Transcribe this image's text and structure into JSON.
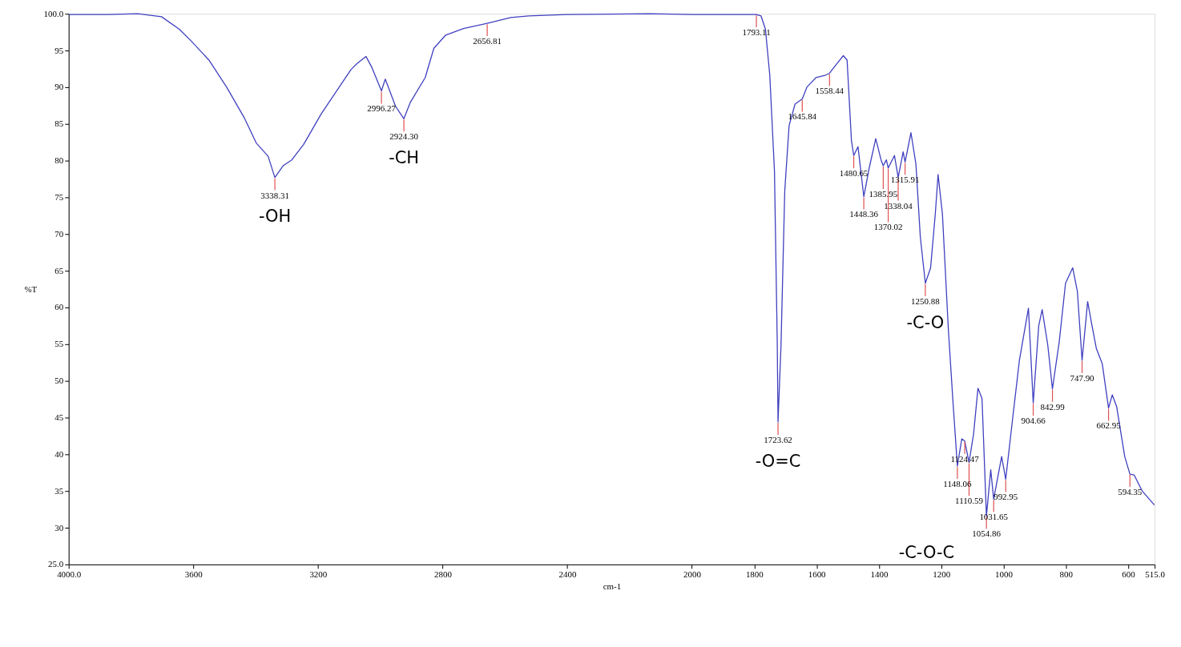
{
  "chart_data": {
    "type": "line",
    "xlabel": "cm-1",
    "ylabel": "%T",
    "xlim": [
      4000,
      515
    ],
    "xticks": [
      {
        "value": 4000,
        "label": "4000.0"
      },
      3600,
      3200,
      2800,
      2400,
      2000,
      1800,
      1600,
      1400,
      1200,
      1000,
      800,
      600,
      {
        "value": 515,
        "label": "515.0"
      }
    ],
    "ylim": [
      25,
      100
    ],
    "yticks": [
      {
        "value": 25,
        "label": "25.0"
      },
      30,
      35,
      40,
      45,
      50,
      55,
      60,
      65,
      70,
      75,
      80,
      85,
      90,
      95,
      {
        "value": 100,
        "label": "100.0"
      }
    ],
    "grid": false,
    "marker": "none",
    "line_style": "solid",
    "series": [
      {
        "color": "#4040c0",
        "x": [
          4000,
          3873,
          3778,
          3702,
          3645,
          3607,
          3550,
          3493,
          3436,
          3398,
          3360,
          3338.31,
          3312,
          3284,
          3246,
          3189,
          3132,
          3094,
          3075,
          3046,
          3027,
          2996.27,
          2984,
          2951,
          2924.3,
          2904,
          2856,
          2828,
          2790,
          2733,
          2656.81,
          2581,
          2524,
          2400,
          2136,
          2000,
          1869,
          1793.11,
          1778,
          1764,
          1750,
          1735,
          1726,
          1723.62,
          1714,
          1702,
          1688,
          1669,
          1645.84,
          1631,
          1602,
          1573,
          1558.44,
          1535,
          1514,
          1502,
          1488,
          1480.65,
          1467,
          1448.36,
          1431,
          1410,
          1393,
          1385.95,
          1376,
          1370.02,
          1350,
          1338.04,
          1322,
          1315.91,
          1297,
          1281,
          1267,
          1250.88,
          1234,
          1219,
          1210,
          1196,
          1177,
          1162,
          1148.06,
          1134,
          1124.47,
          1110.59,
          1096,
          1082,
          1069,
          1054.86,
          1041,
          1031.65,
          1006,
          992.95,
          972,
          949,
          920,
          904.66,
          887,
          876,
          858,
          842.99,
          821,
          801,
          778,
          763,
          747.9,
          730,
          716,
          702,
          683,
          662.95,
          651,
          637,
          611,
          594.35,
          581,
          555,
          516
        ],
        "values": [
          99.9,
          99.9,
          100.0,
          99.6,
          97.9,
          96.3,
          93.7,
          90.0,
          85.8,
          82.4,
          80.6,
          77.7,
          79.3,
          80.1,
          82.2,
          86.4,
          90.0,
          92.4,
          93.2,
          94.2,
          92.7,
          89.5,
          91.1,
          87.4,
          85.7,
          87.9,
          91.3,
          95.3,
          97.1,
          98.0,
          98.7,
          99.5,
          99.7,
          99.9,
          100.0,
          99.9,
          99.9,
          99.9,
          99.7,
          97.9,
          91.6,
          78.5,
          54.9,
          44.4,
          54.9,
          75.9,
          84.8,
          87.7,
          88.4,
          90.0,
          91.3,
          91.6,
          91.9,
          93.2,
          94.3,
          93.7,
          82.7,
          80.7,
          81.9,
          75.1,
          79.0,
          83.0,
          80.1,
          79.3,
          80.1,
          79.0,
          80.7,
          77.7,
          81.2,
          79.8,
          83.8,
          79.5,
          69.6,
          63.3,
          65.4,
          72.7,
          78.1,
          72.7,
          57.0,
          47.0,
          38.4,
          42.1,
          41.8,
          38.9,
          42.8,
          49.0,
          47.6,
          31.6,
          37.9,
          33.9,
          39.7,
          36.6,
          44.4,
          52.8,
          59.9,
          47.0,
          57.5,
          59.7,
          54.9,
          48.9,
          55.4,
          63.3,
          65.4,
          62.2,
          52.8,
          60.8,
          57.5,
          54.4,
          52.3,
          46.3,
          48.1,
          46.5,
          39.7,
          37.3,
          37.2,
          35.0,
          33.1
        ]
      }
    ],
    "annotations": [
      {
        "text": "3338.31",
        "x": 3338.31,
        "y": 77.7
      },
      {
        "text": "2996.27",
        "x": 2996.27,
        "y": 89.5
      },
      {
        "text": "2924.30",
        "x": 2924.3,
        "y": 85.7
      },
      {
        "text": "2656.81",
        "x": 2656.81,
        "y": 98.7
      },
      {
        "text": "1793.11",
        "x": 1793.11,
        "y": 99.9
      },
      {
        "text": "1723.62",
        "x": 1723.62,
        "y": 44.4
      },
      {
        "text": "1645.84",
        "x": 1645.84,
        "y": 88.4
      },
      {
        "text": "1558.44",
        "x": 1558.44,
        "y": 91.9
      },
      {
        "text": "1480.65",
        "x": 1480.65,
        "y": 80.7
      },
      {
        "text": "1448.36",
        "x": 1448.36,
        "y": 75.1
      },
      {
        "text": "1385.95",
        "x": 1385.95,
        "y": 79.3
      },
      {
        "text": "1370.02",
        "x": 1370.02,
        "y": 79.0
      },
      {
        "text": "1338.04",
        "x": 1338.04,
        "y": 77.7
      },
      {
        "text": "1315.91",
        "x": 1315.91,
        "y": 79.8
      },
      {
        "text": "1250.88",
        "x": 1250.88,
        "y": 63.3
      },
      {
        "text": "1148.06",
        "x": 1148.06,
        "y": 38.4
      },
      {
        "text": "1124.47",
        "x": 1124.47,
        "y": 41.8
      },
      {
        "text": "1110.59",
        "x": 1110.59,
        "y": 38.9
      },
      {
        "text": "1054.86",
        "x": 1054.86,
        "y": 31.6
      },
      {
        "text": "1031.65",
        "x": 1031.65,
        "y": 33.9
      },
      {
        "text": "992.95",
        "x": 992.95,
        "y": 36.6
      },
      {
        "text": "904.66",
        "x": 904.66,
        "y": 47.0
      },
      {
        "text": "842.99",
        "x": 842.99,
        "y": 48.9
      },
      {
        "text": "747.90",
        "x": 747.9,
        "y": 52.8
      },
      {
        "text": "662.95",
        "x": 662.95,
        "y": 46.3
      },
      {
        "text": "594.35",
        "x": 594.35,
        "y": 37.3
      },
      {
        "text": "-OH",
        "x": 3338.31,
        "y": 77.7
      },
      {
        "text": "-CH",
        "x": 2924.3,
        "y": 85.7
      },
      {
        "text": "-O=C",
        "x": 1723.62,
        "y": 44.4
      },
      {
        "text": "-C-O",
        "x": 1250.88,
        "y": 63.3
      },
      {
        "text": "-C-O-C",
        "x": 1054.86,
        "y": 31.6
      }
    ]
  }
}
